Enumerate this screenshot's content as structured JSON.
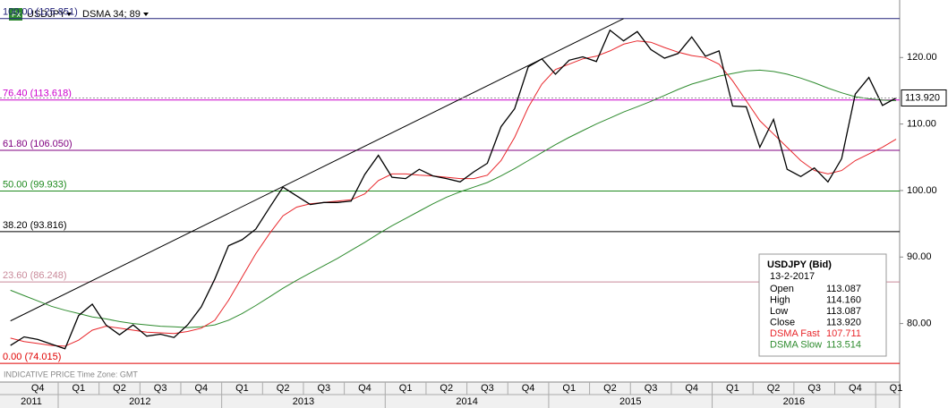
{
  "chart_data": {
    "type": "line",
    "symbol": "USDJPY",
    "indicator": "DSMA 34; 89",
    "footer": "INDICATIVE PRICE  Time Zone: GMT",
    "ylim": [
      71.2,
      128.65
    ],
    "yticks": [
      {
        "value": 80,
        "label": "80.00"
      },
      {
        "value": 90,
        "label": "90.00"
      },
      {
        "value": 100,
        "label": "100.00"
      },
      {
        "value": 110,
        "label": "110.00"
      },
      {
        "value": 120,
        "label": "120.00"
      }
    ],
    "quarters": [
      "Q4",
      "Q1",
      "Q2",
      "Q3",
      "Q4",
      "Q1",
      "Q2",
      "Q3",
      "Q4",
      "Q1",
      "Q2",
      "Q3",
      "Q4",
      "Q1",
      "Q2",
      "Q3",
      "Q4",
      "Q1",
      "Q2",
      "Q3",
      "Q4",
      "Q1"
    ],
    "years": [
      "2011",
      "2012",
      "2013",
      "2014",
      "2015",
      "2016"
    ],
    "x": [
      "2011-09",
      "2011-10",
      "2011-11",
      "2011-12",
      "2012-01",
      "2012-02",
      "2012-03",
      "2012-04",
      "2012-05",
      "2012-06",
      "2012-07",
      "2012-08",
      "2012-09",
      "2012-10",
      "2012-11",
      "2012-12",
      "2013-01",
      "2013-02",
      "2013-03",
      "2013-04",
      "2013-05",
      "2013-06",
      "2013-07",
      "2013-08",
      "2013-09",
      "2013-10",
      "2013-11",
      "2013-12",
      "2014-01",
      "2014-02",
      "2014-03",
      "2014-04",
      "2014-05",
      "2014-06",
      "2014-07",
      "2014-08",
      "2014-09",
      "2014-10",
      "2014-11",
      "2014-12",
      "2015-01",
      "2015-02",
      "2015-03",
      "2015-04",
      "2015-05",
      "2015-06",
      "2015-07",
      "2015-08",
      "2015-09",
      "2015-10",
      "2015-11",
      "2015-12",
      "2016-01",
      "2016-02",
      "2016-03",
      "2016-04",
      "2016-05",
      "2016-06",
      "2016-07",
      "2016-08",
      "2016-09",
      "2016-10",
      "2016-11",
      "2016-12",
      "2017-01",
      "2017-02"
    ],
    "series": [
      {
        "color": "#000000",
        "values": [
          76.7,
          78.0,
          77.6,
          76.9,
          76.2,
          81.2,
          82.9,
          79.8,
          78.3,
          79.8,
          78.1,
          78.4,
          77.9,
          79.8,
          82.5,
          86.7,
          91.7,
          92.6,
          94.2,
          97.4,
          100.5,
          99.2,
          97.9,
          98.2,
          98.2,
          98.4,
          102.4,
          105.3,
          102.0,
          101.8,
          103.2,
          102.2,
          101.8,
          101.3,
          102.8,
          104.1,
          109.6,
          112.3,
          118.6,
          119.8,
          117.5,
          119.6,
          120.1,
          119.4,
          124.1,
          122.5,
          123.9,
          121.2,
          119.9,
          120.6,
          123.1,
          120.2,
          121.0,
          112.7,
          112.6,
          106.5,
          110.7,
          103.2,
          102.1,
          103.4,
          101.3,
          104.8,
          114.5,
          117.0,
          112.8,
          113.92
        ]
      },
      {
        "name": "DSMA Fast",
        "color": "#e8262b",
        "values": [
          77.8,
          77.3,
          77.0,
          76.7,
          76.6,
          77.5,
          79.0,
          79.6,
          79.3,
          79.0,
          78.7,
          78.6,
          78.5,
          78.8,
          79.3,
          80.5,
          83.5,
          87.0,
          90.5,
          93.5,
          96.2,
          97.5,
          98.0,
          98.2,
          98.4,
          98.6,
          99.5,
          101.5,
          102.5,
          102.5,
          102.3,
          102.2,
          102.0,
          101.8,
          101.8,
          102.3,
          104.5,
          108.0,
          112.5,
          116.0,
          118.2,
          119.0,
          119.8,
          120.2,
          121.0,
          122.0,
          122.5,
          122.3,
          121.5,
          120.8,
          120.3,
          120.0,
          119.0,
          116.5,
          113.5,
          110.5,
          108.5,
          106.5,
          104.5,
          103.0,
          102.5,
          103.0,
          104.5,
          105.5,
          106.5,
          107.711
        ]
      },
      {
        "name": "DSMA Slow",
        "color": "#2e8b2e",
        "values": [
          85.0,
          84.2,
          83.4,
          82.6,
          82.0,
          81.5,
          81.0,
          80.7,
          80.3,
          80.0,
          79.8,
          79.6,
          79.5,
          79.4,
          79.5,
          79.8,
          80.5,
          81.5,
          82.7,
          84.0,
          85.3,
          86.5,
          87.6,
          88.7,
          89.8,
          91.0,
          92.2,
          93.5,
          94.7,
          95.8,
          96.9,
          98.0,
          99.0,
          99.8,
          100.5,
          101.2,
          102.2,
          103.3,
          104.5,
          105.7,
          106.9,
          108.0,
          109.0,
          110.0,
          110.9,
          111.8,
          112.6,
          113.4,
          114.3,
          115.2,
          116.0,
          116.6,
          117.2,
          117.6,
          118.0,
          118.1,
          117.9,
          117.5,
          116.9,
          116.2,
          115.4,
          114.7,
          114.1,
          113.8,
          113.6,
          113.514
        ]
      }
    ],
    "trendline": {
      "x": [
        "2011-09",
        "2015-06"
      ],
      "values": [
        80.4,
        125.851
      ]
    },
    "fib_levels": [
      {
        "label": "100.00 (125.851)",
        "level": 125.851,
        "color": "#23237a"
      },
      {
        "label": "76.40 (113.618)",
        "level": 113.618,
        "color": "#cc00cc"
      },
      {
        "label": "61.80 (106.050)",
        "level": 106.05,
        "color": "#800080"
      },
      {
        "label": "50.00 (99.933)",
        "level": 99.933,
        "color": "#1f8a1f"
      },
      {
        "label": "38.20 (93.816)",
        "level": 93.816,
        "color": "#000000"
      },
      {
        "label": "23.60 (86.248)",
        "level": 86.248,
        "color": "#c98a9a"
      },
      {
        "label": "0.00 (74.015)",
        "level": 74.015,
        "color": "#e00000"
      }
    ],
    "last_price": {
      "value": 113.92,
      "label": "113.920"
    },
    "info_box": {
      "title": "USDJPY (Bid)",
      "date": "13-2-2017",
      "rows": [
        {
          "label": "Open",
          "value": 113.087,
          "text": "113.087",
          "color": "#000000"
        },
        {
          "label": "High",
          "value": 114.16,
          "text": "114.160",
          "color": "#000000"
        },
        {
          "label": "Low",
          "value": 113.087,
          "text": "113.087",
          "color": "#000000"
        },
        {
          "label": "Close",
          "value": 113.92,
          "text": "113.920",
          "color": "#000000"
        },
        {
          "label": "DSMA Fast",
          "value": 107.711,
          "text": "107.711",
          "color": "#e8262b"
        },
        {
          "label": "DSMA Slow",
          "value": 113.514,
          "text": "113.514",
          "color": "#2e8b2e"
        }
      ]
    }
  }
}
